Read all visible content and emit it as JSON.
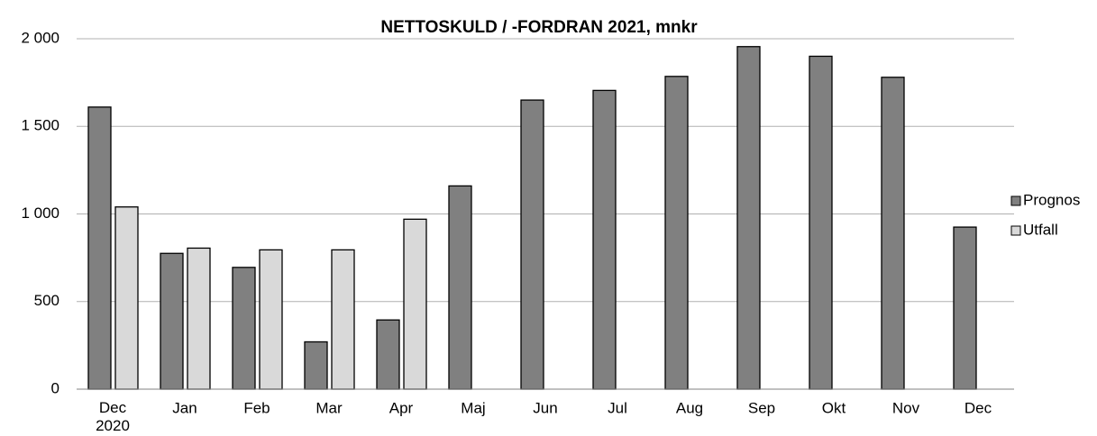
{
  "chart_data": {
    "type": "bar",
    "title": "NETTOSKULD / -FORDRAN 2021, mnkr",
    "categories": [
      "Dec\n2020",
      "Jan",
      "Feb",
      "Mar",
      "Apr",
      "Maj",
      "Jun",
      "Jul",
      "Aug",
      "Sep",
      "Okt",
      "Nov",
      "Dec"
    ],
    "series": [
      {
        "name": "Prognos",
        "color": "#808080",
        "values": [
          1610,
          775,
          695,
          270,
          395,
          1160,
          1650,
          1705,
          1785,
          1955,
          1900,
          1780,
          925
        ]
      },
      {
        "name": "Utfall",
        "color": "#d9d9d9",
        "values": [
          1040,
          805,
          795,
          795,
          970,
          null,
          null,
          null,
          null,
          null,
          null,
          null,
          null
        ]
      }
    ],
    "ylim": [
      0,
      2000
    ],
    "yticks": [
      0,
      500,
      {
        "value": 1000,
        "label": "1 000"
      },
      {
        "value": 1500,
        "label": "1 500"
      },
      {
        "value": 2000,
        "label": "2 000"
      }
    ],
    "grid": true,
    "legend": "right"
  }
}
